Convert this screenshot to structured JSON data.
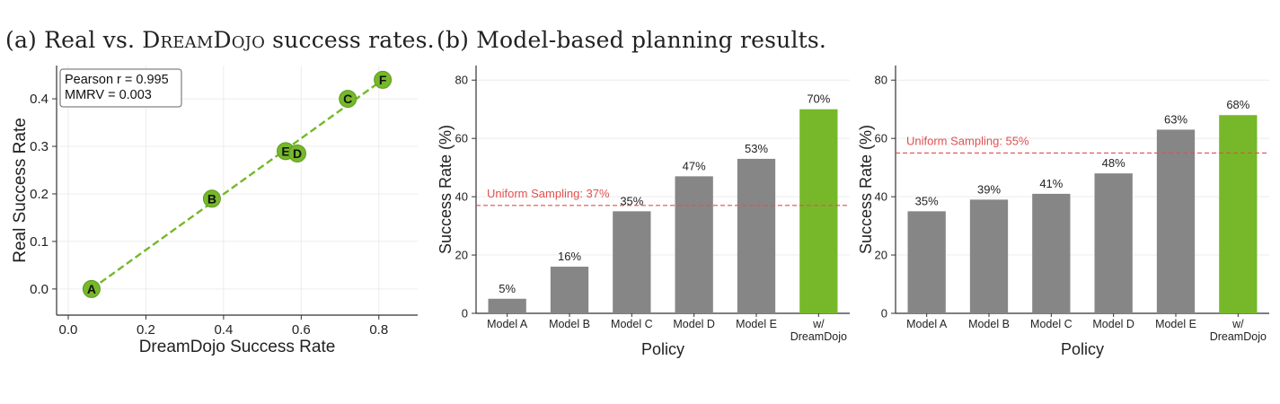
{
  "captions": {
    "a_prefix": "(a) Real vs. ",
    "a_name": "DreamDojo",
    "a_suffix": " success rates.",
    "b": "(b) Model-based planning results."
  },
  "colors": {
    "green": "#76b82a",
    "bar_gray": "#868686",
    "reference_red": "#e0504f",
    "axis": "#333333",
    "grid": "#ececec"
  },
  "chart_data": [
    {
      "type": "scatter",
      "xlabel": "DreamDojo Success Rate",
      "ylabel": "Real Success Rate",
      "xlim": [
        -0.03,
        0.9
      ],
      "ylim": [
        -0.055,
        0.47
      ],
      "xticks": [
        "0.0",
        "0.2",
        "0.4",
        "0.6",
        "0.8"
      ],
      "yticks": [
        "0.0",
        "0.1",
        "0.2",
        "0.3",
        "0.4"
      ],
      "grid": true,
      "points": [
        {
          "label": "A",
          "x": 0.06,
          "y": 0.0
        },
        {
          "label": "B",
          "x": 0.37,
          "y": 0.19
        },
        {
          "label": "E",
          "x": 0.56,
          "y": 0.29
        },
        {
          "label": "D",
          "x": 0.59,
          "y": 0.285
        },
        {
          "label": "C",
          "x": 0.72,
          "y": 0.4
        },
        {
          "label": "F",
          "x": 0.81,
          "y": 0.44
        }
      ],
      "fit_line": {
        "x": [
          0.06,
          0.81
        ],
        "y": [
          0.0,
          0.44
        ]
      },
      "stats_box": [
        "Pearson r = 0.995",
        "MMRV = 0.003"
      ],
      "stats_box_position": "top-left"
    },
    {
      "type": "bar",
      "xlabel": "Policy",
      "ylabel": "Success Rate (%)",
      "ylim": [
        0,
        85
      ],
      "yticks": [
        "0",
        "20",
        "40",
        "60",
        "80"
      ],
      "grid": true,
      "categories": [
        "Model A",
        "Model B",
        "Model C",
        "Model D",
        "Model E",
        "w/\nDreamDojo"
      ],
      "values": [
        5,
        16,
        35,
        47,
        53,
        70
      ],
      "value_labels": [
        "5%",
        "16%",
        "35%",
        "47%",
        "53%",
        "70%"
      ],
      "highlight_index": 5,
      "reference_line": {
        "value": 37,
        "label": "Uniform Sampling: 37%"
      }
    },
    {
      "type": "bar",
      "xlabel": "Policy",
      "ylabel": "Success Rate (%)",
      "ylim": [
        0,
        85
      ],
      "yticks": [
        "0",
        "20",
        "40",
        "60",
        "80"
      ],
      "grid": true,
      "categories": [
        "Model A",
        "Model B",
        "Model C",
        "Model D",
        "Model E",
        "w/\nDreamDojo"
      ],
      "values": [
        35,
        39,
        41,
        48,
        63,
        68
      ],
      "value_labels": [
        "35%",
        "39%",
        "41%",
        "48%",
        "63%",
        "68%"
      ],
      "highlight_index": 5,
      "reference_line": {
        "value": 55,
        "label": "Uniform Sampling: 55%"
      }
    }
  ]
}
